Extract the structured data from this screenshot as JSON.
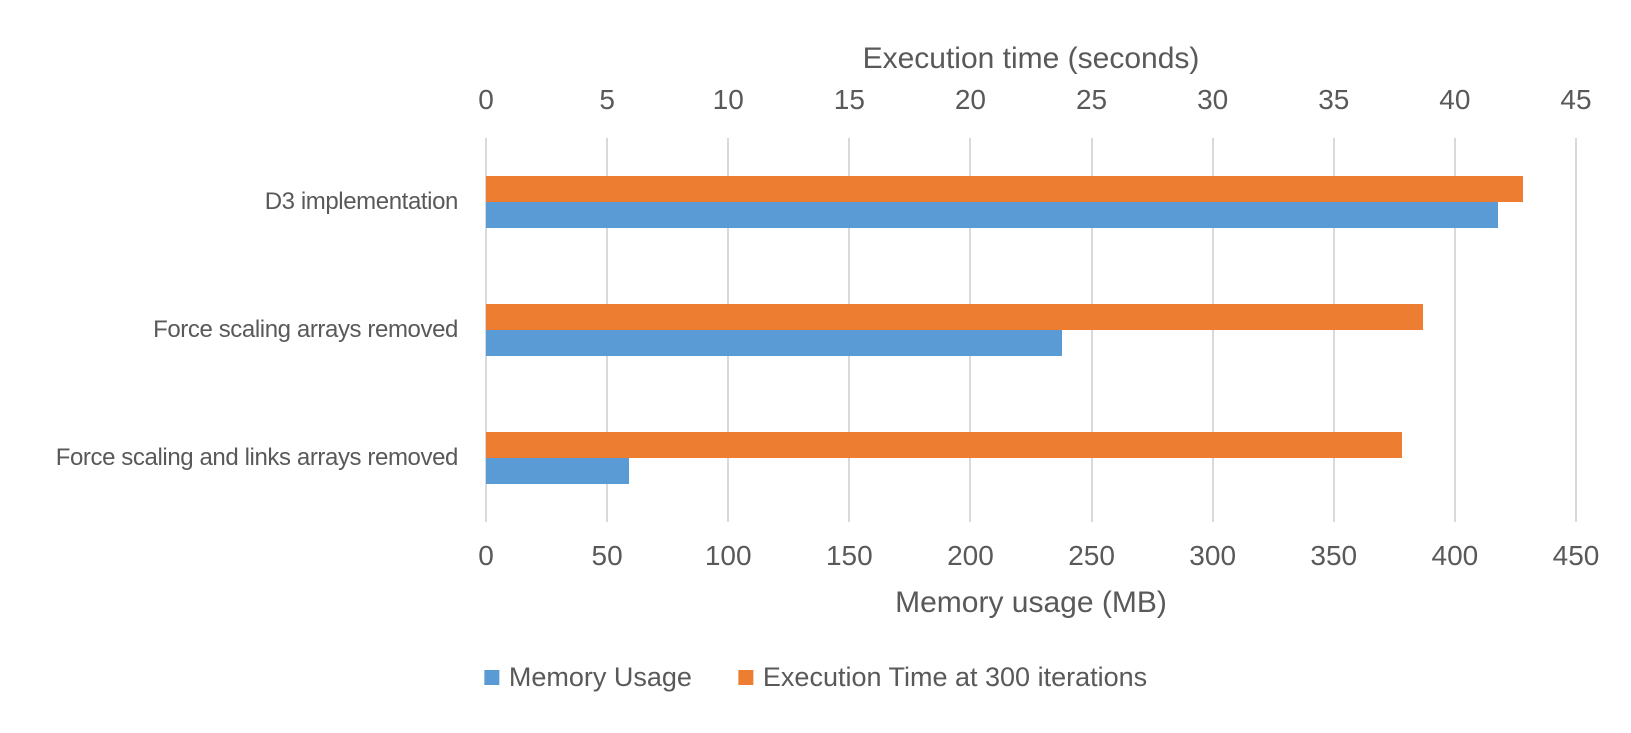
{
  "chart_data": {
    "type": "bar",
    "orientation": "horizontal",
    "title": "",
    "categories": [
      "D3 implementation",
      "Force scaling arrays removed",
      "Force scaling and links arrays removed"
    ],
    "series": [
      {
        "name": "Memory Usage",
        "axis": "bottom",
        "color": "#5B9BD5",
        "values": [
          418,
          238,
          59
        ]
      },
      {
        "name": "Execution Time at 300 iterations",
        "axis": "top",
        "color": "#ED7D31",
        "values": [
          42.8,
          38.7,
          37.8
        ]
      }
    ],
    "axes": {
      "top": {
        "label": "Execution time (seconds)",
        "min": 0,
        "max": 45,
        "step": 5,
        "ticks": [
          0,
          5,
          10,
          15,
          20,
          25,
          30,
          35,
          40,
          45
        ]
      },
      "bottom": {
        "label": "Memory usage (MB)",
        "min": 0,
        "max": 450,
        "step": 50,
        "ticks": [
          0,
          50,
          100,
          150,
          200,
          250,
          300,
          350,
          400,
          450
        ]
      }
    },
    "legend": {
      "position": "bottom",
      "items": [
        "Memory Usage",
        "Execution Time at 300 iterations"
      ]
    },
    "grid": true,
    "colors": {
      "text": "#595959",
      "gridline": "#D9D9D9"
    }
  }
}
